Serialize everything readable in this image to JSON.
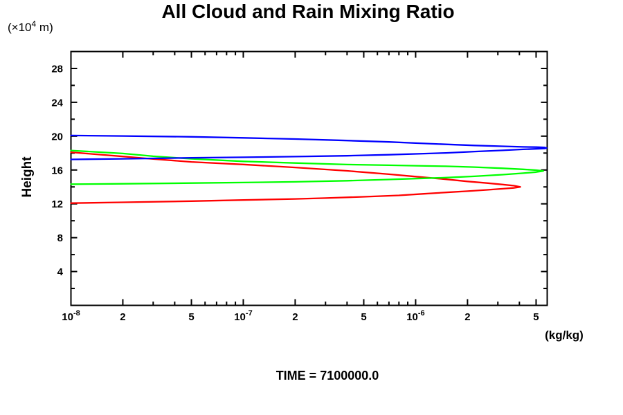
{
  "chart_data": {
    "type": "line",
    "title": "All Cloud and Rain Mixing Ratio",
    "caption": "TIME = 7100000.0",
    "ylabel": "Height",
    "y_unit": {
      "prefix": "(×10",
      "exp": "4",
      "suffix": " m)"
    },
    "x_unit": "(kg/kg)",
    "x_scale": "log",
    "xlim": [
      1e-08,
      5.8e-06
    ],
    "ylim": [
      0,
      30
    ],
    "grid": false,
    "legend": "none",
    "axis_color": "#000000",
    "background_color": "#ffffff",
    "x_ticks": [
      {
        "v": 1e-08,
        "label": {
          "base": "10",
          "exp": "-8"
        }
      },
      {
        "v": 2e-08,
        "label": "2"
      },
      {
        "v": 3e-08
      },
      {
        "v": 4e-08
      },
      {
        "v": 5e-08,
        "label": "5"
      },
      {
        "v": 6e-08
      },
      {
        "v": 7e-08
      },
      {
        "v": 8e-08
      },
      {
        "v": 9e-08
      },
      {
        "v": 1e-07,
        "label": {
          "base": "10",
          "exp": "-7"
        }
      },
      {
        "v": 2e-07,
        "label": "2"
      },
      {
        "v": 3e-07
      },
      {
        "v": 4e-07
      },
      {
        "v": 5e-07,
        "label": "5"
      },
      {
        "v": 6e-07
      },
      {
        "v": 7e-07
      },
      {
        "v": 8e-07
      },
      {
        "v": 9e-07
      },
      {
        "v": 1e-06,
        "label": {
          "base": "10",
          "exp": "-6"
        }
      },
      {
        "v": 2e-06,
        "label": "2"
      },
      {
        "v": 3e-06
      },
      {
        "v": 4e-06
      },
      {
        "v": 5e-06,
        "label": "5"
      }
    ],
    "y_ticks": [
      {
        "v": 2
      },
      {
        "v": 4,
        "label": "4"
      },
      {
        "v": 6
      },
      {
        "v": 8,
        "label": "8"
      },
      {
        "v": 10
      },
      {
        "v": 12,
        "label": "12"
      },
      {
        "v": 14
      },
      {
        "v": 16,
        "label": "16"
      },
      {
        "v": 18
      },
      {
        "v": 20,
        "label": "20"
      },
      {
        "v": 22
      },
      {
        "v": 24,
        "label": "24"
      },
      {
        "v": 26
      },
      {
        "v": 28,
        "label": "28"
      }
    ],
    "series": [
      {
        "name": "red-profile",
        "color": "#ff0000",
        "points": [
          [
            1e-08,
            18.1
          ],
          [
            2e-08,
            17.6
          ],
          [
            3e-08,
            17.3
          ],
          [
            5e-08,
            16.95
          ],
          [
            1e-07,
            16.65
          ],
          [
            2e-07,
            16.3
          ],
          [
            4e-07,
            15.9
          ],
          [
            7e-07,
            15.5
          ],
          [
            1e-06,
            15.22
          ],
          [
            1.5e-06,
            14.9
          ],
          [
            2e-06,
            14.65
          ],
          [
            2.6e-06,
            14.45
          ],
          [
            3.2e-06,
            14.28
          ],
          [
            3.7e-06,
            14.15
          ],
          [
            4.05e-06,
            14.0
          ],
          [
            3.7e-06,
            13.88
          ],
          [
            3.2e-06,
            13.78
          ],
          [
            2.6e-06,
            13.65
          ],
          [
            2e-06,
            13.5
          ],
          [
            1.5e-06,
            13.35
          ],
          [
            1.1e-06,
            13.18
          ],
          [
            8e-07,
            13.0
          ],
          [
            5e-07,
            12.83
          ],
          [
            3e-07,
            12.68
          ],
          [
            2e-07,
            12.58
          ],
          [
            1e-07,
            12.45
          ],
          [
            5e-08,
            12.32
          ],
          [
            2e-08,
            12.18
          ],
          [
            1e-08,
            12.08
          ]
        ]
      },
      {
        "name": "green-profile",
        "color": "#00ff00",
        "points": [
          [
            1e-08,
            18.3
          ],
          [
            2e-08,
            17.95
          ],
          [
            3e-08,
            17.62
          ],
          [
            5e-08,
            17.32
          ],
          [
            1e-07,
            17.02
          ],
          [
            2e-07,
            16.82
          ],
          [
            4e-07,
            16.64
          ],
          [
            7e-07,
            16.56
          ],
          [
            1e-06,
            16.5
          ],
          [
            1.5e-06,
            16.44
          ],
          [
            2.2e-06,
            16.34
          ],
          [
            3.2e-06,
            16.2
          ],
          [
            4.2e-06,
            16.08
          ],
          [
            5e-06,
            15.98
          ],
          [
            5.5e-06,
            15.88
          ],
          [
            5e-06,
            15.75
          ],
          [
            4.2e-06,
            15.62
          ],
          [
            3.2e-06,
            15.45
          ],
          [
            2.2e-06,
            15.25
          ],
          [
            1.5e-06,
            15.1
          ],
          [
            1e-06,
            14.98
          ],
          [
            7e-07,
            14.88
          ],
          [
            4e-07,
            14.73
          ],
          [
            2e-07,
            14.6
          ],
          [
            1e-07,
            14.52
          ],
          [
            5e-08,
            14.45
          ],
          [
            2e-08,
            14.37
          ],
          [
            1e-08,
            14.32
          ]
        ]
      },
      {
        "name": "blue-profile",
        "color": "#0000ff",
        "points": [
          [
            1e-08,
            20.08
          ],
          [
            2e-08,
            20.02
          ],
          [
            5e-08,
            19.92
          ],
          [
            1e-07,
            19.8
          ],
          [
            2e-07,
            19.66
          ],
          [
            4e-07,
            19.48
          ],
          [
            7e-07,
            19.32
          ],
          [
            1e-06,
            19.18
          ],
          [
            1.5e-06,
            19.03
          ],
          [
            2.2e-06,
            18.9
          ],
          [
            3.2e-06,
            18.8
          ],
          [
            4.2e-06,
            18.73
          ],
          [
            5e-06,
            18.7
          ],
          [
            5.6e-06,
            18.66
          ],
          [
            5.75e-06,
            18.6
          ],
          [
            5.6e-06,
            18.54
          ],
          [
            5e-06,
            18.5
          ],
          [
            4.2e-06,
            18.44
          ],
          [
            3.2e-06,
            18.32
          ],
          [
            2.2e-06,
            18.18
          ],
          [
            1.5e-06,
            18.02
          ],
          [
            1e-06,
            17.9
          ],
          [
            7e-07,
            17.8
          ],
          [
            4e-07,
            17.68
          ],
          [
            2e-07,
            17.58
          ],
          [
            1e-07,
            17.5
          ],
          [
            5e-08,
            17.44
          ],
          [
            2e-08,
            17.32
          ],
          [
            1e-08,
            17.25
          ]
        ]
      }
    ]
  }
}
